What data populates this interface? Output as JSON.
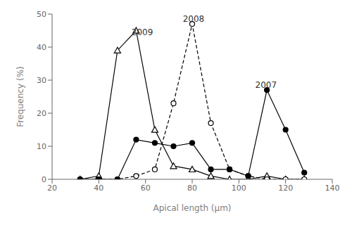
{
  "chart_data": {
    "type": "line",
    "x_label": "Apical length (μm)",
    "y_label": "Frequency (%)",
    "xlim": [
      20,
      140
    ],
    "ylim": [
      0,
      50
    ],
    "xticks": [
      20,
      40,
      60,
      80,
      100,
      120,
      140
    ],
    "yticks": [
      0,
      10,
      20,
      30,
      40,
      50
    ],
    "grid": false,
    "x": [
      32,
      40,
      48,
      56,
      64,
      72,
      80,
      88,
      96,
      104,
      112,
      120,
      128
    ],
    "series": [
      {
        "color": "#000000",
        "marker": "open-triangle",
        "line_style": "solid",
        "values": [
          0,
          1,
          39,
          45,
          15,
          4,
          3,
          1,
          0,
          0,
          1,
          0,
          0
        ]
      },
      {
        "color": "#000000",
        "marker": "open-circle",
        "line_style": "dashed",
        "values": [
          0,
          0,
          0,
          1,
          3,
          23,
          47,
          17,
          3,
          1,
          0,
          0,
          0
        ]
      },
      {
        "color": "#000000",
        "marker": "filled-circle",
        "line_style": "solid",
        "values": [
          0,
          0,
          0,
          12,
          11,
          10,
          11,
          3,
          3,
          1,
          27,
          15,
          2
        ]
      }
    ],
    "annotations": [
      {
        "text": "2009",
        "x": 54,
        "y": 43
      },
      {
        "text": "2008",
        "x": 76,
        "y": 47
      },
      {
        "text": "2007",
        "x": 107,
        "y": 27
      }
    ]
  }
}
